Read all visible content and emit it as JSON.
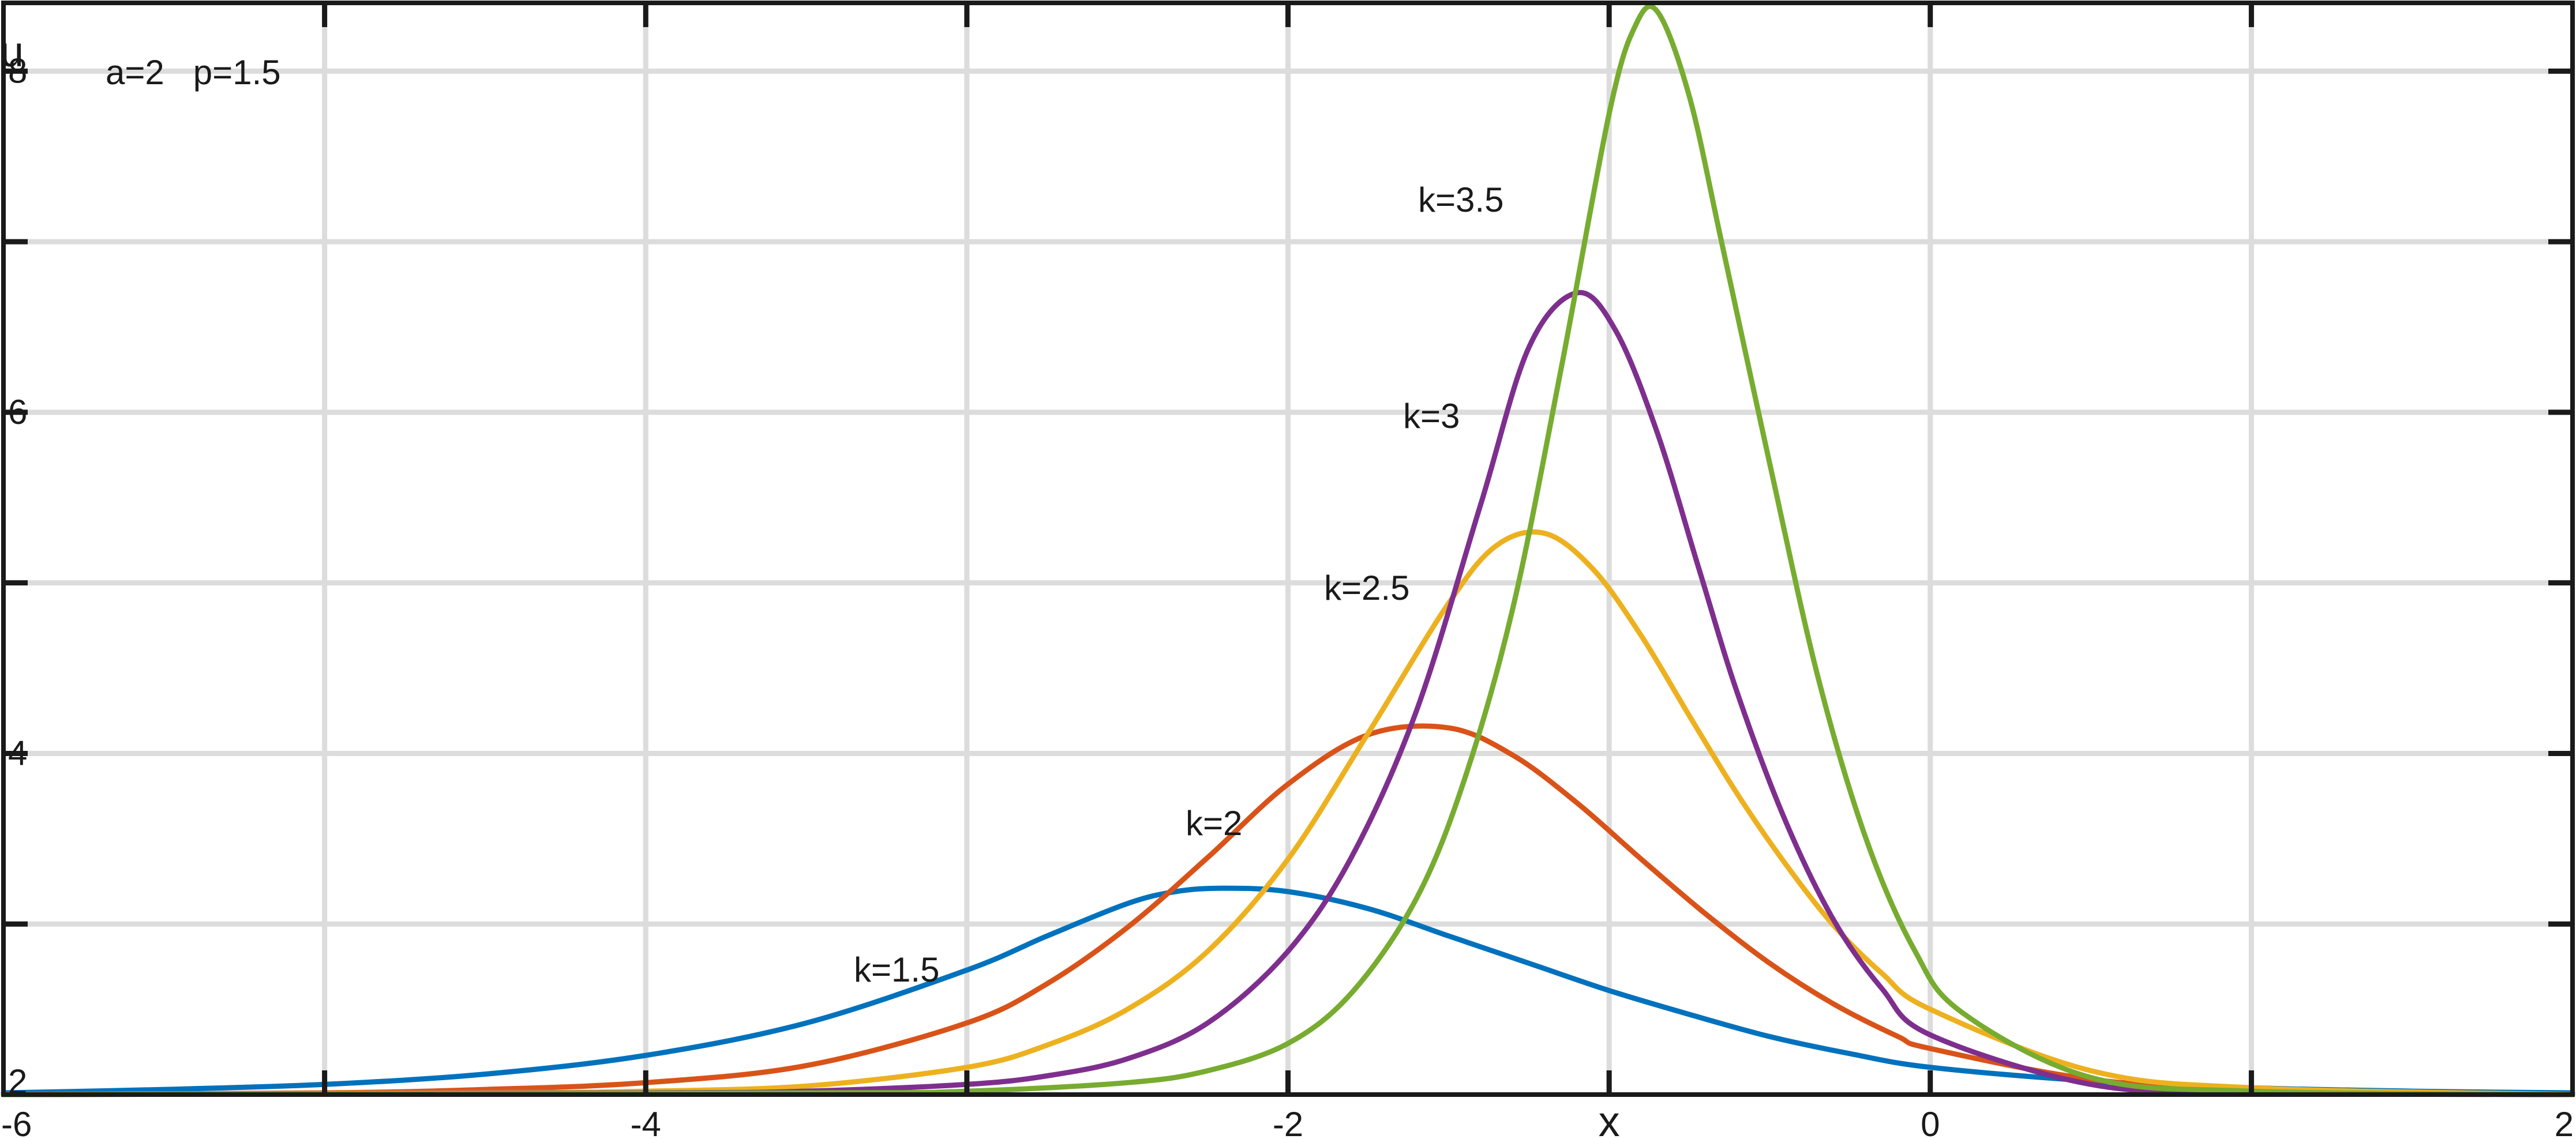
{
  "chart_data": {
    "type": "line",
    "title": "",
    "xlabel": "x",
    "ylabel": "u",
    "xlim": [
      -6,
      2
    ],
    "ylim": [
      2,
      8.4
    ],
    "grid": true,
    "legend": "none",
    "x_ticks": [
      -6,
      -5,
      -4,
      -3,
      -2,
      -1,
      0,
      1,
      2
    ],
    "x_tick_labels": [
      "-6",
      "",
      "-4",
      "",
      "-2",
      "",
      "0",
      "",
      "2"
    ],
    "y_ticks": [
      2,
      3,
      4,
      5,
      6,
      7,
      8
    ],
    "y_tick_labels": [
      "2",
      "",
      "4",
      "",
      "6",
      "",
      "8"
    ],
    "annotation": "a=2   p=1.5",
    "series": [
      {
        "name": "k=1.5",
        "color": "#0072bd",
        "label": "k=1.5",
        "x": [
          -6.0,
          -5.5,
          -5.0,
          -4.5,
          -4.0,
          -3.5,
          -3.0,
          -2.75,
          -2.5,
          -2.35,
          -2.2,
          -2.0,
          -1.75,
          -1.5,
          -1.25,
          -1.0,
          -0.75,
          -0.5,
          -0.25,
          0.0,
          0.5,
          1.0,
          1.5,
          2.0
        ],
        "y": [
          2.01,
          2.03,
          2.06,
          2.12,
          2.23,
          2.42,
          2.73,
          2.93,
          3.12,
          3.19,
          3.21,
          3.19,
          3.09,
          2.93,
          2.77,
          2.61,
          2.47,
          2.34,
          2.24,
          2.16,
          2.08,
          2.04,
          2.02,
          2.01
        ]
      },
      {
        "name": "k=2",
        "color": "#d95319",
        "label": "k=2",
        "x": [
          -6.0,
          -5.0,
          -4.5,
          -4.0,
          -3.5,
          -3.0,
          -2.75,
          -2.5,
          -2.25,
          -2.0,
          -1.75,
          -1.5,
          -1.3,
          -1.1,
          -0.9,
          -0.7,
          -0.5,
          -0.3,
          -0.1,
          0.0,
          0.5,
          1.0,
          2.0
        ],
        "y": [
          2.0,
          2.01,
          2.03,
          2.07,
          2.17,
          2.42,
          2.65,
          2.98,
          3.39,
          3.82,
          4.11,
          4.15,
          3.99,
          3.71,
          3.38,
          3.06,
          2.77,
          2.53,
          2.34,
          2.27,
          2.09,
          2.03,
          2.0
        ]
      },
      {
        "name": "k=2.5",
        "color": "#edb120",
        "label": "k=2.5",
        "x": [
          -6.0,
          -4.5,
          -4.0,
          -3.5,
          -3.0,
          -2.75,
          -2.5,
          -2.25,
          -2.0,
          -1.75,
          -1.5,
          -1.35,
          -1.2,
          -1.05,
          -0.9,
          -0.75,
          -0.6,
          -0.45,
          -0.3,
          -0.15,
          0.0,
          0.5,
          1.0,
          2.0
        ],
        "y": [
          2.0,
          2.01,
          2.02,
          2.05,
          2.16,
          2.29,
          2.5,
          2.84,
          3.38,
          4.12,
          4.88,
          5.22,
          5.29,
          5.08,
          4.69,
          4.22,
          3.76,
          3.35,
          2.99,
          2.71,
          2.5,
          2.14,
          2.04,
          2.0
        ]
      },
      {
        "name": "k=3",
        "color": "#7e2f8e",
        "label": "k=3",
        "x": [
          -6.0,
          -4.0,
          -3.5,
          -3.0,
          -2.75,
          -2.5,
          -2.25,
          -2.0,
          -1.8,
          -1.6,
          -1.4,
          -1.25,
          -1.1,
          -0.98,
          -0.85,
          -0.72,
          -0.6,
          -0.45,
          -0.3,
          -0.15,
          0.0,
          0.5,
          1.0,
          2.0
        ],
        "y": [
          2.0,
          2.01,
          2.02,
          2.06,
          2.11,
          2.21,
          2.42,
          2.84,
          3.4,
          4.25,
          5.46,
          6.38,
          6.7,
          6.48,
          5.88,
          5.08,
          4.35,
          3.6,
          3.02,
          2.62,
          2.35,
          2.06,
          2.01,
          2.0
        ]
      },
      {
        "name": "k=3.5",
        "color": "#77ac30",
        "label": "k=3.5",
        "x": [
          -6.0,
          -3.5,
          -3.0,
          -2.5,
          -2.25,
          -2.0,
          -1.8,
          -1.6,
          -1.45,
          -1.3,
          -1.15,
          -1.0,
          -0.92,
          -0.85,
          -0.75,
          -0.65,
          -0.5,
          -0.35,
          -0.2,
          -0.05,
          0.1,
          0.5,
          1.0,
          2.0
        ],
        "y": [
          2.0,
          2.01,
          2.02,
          2.07,
          2.14,
          2.3,
          2.6,
          3.15,
          3.85,
          4.85,
          6.25,
          7.75,
          8.26,
          8.35,
          7.85,
          7.0,
          5.7,
          4.45,
          3.5,
          2.85,
          2.48,
          2.1,
          2.02,
          2.0
        ]
      }
    ]
  }
}
